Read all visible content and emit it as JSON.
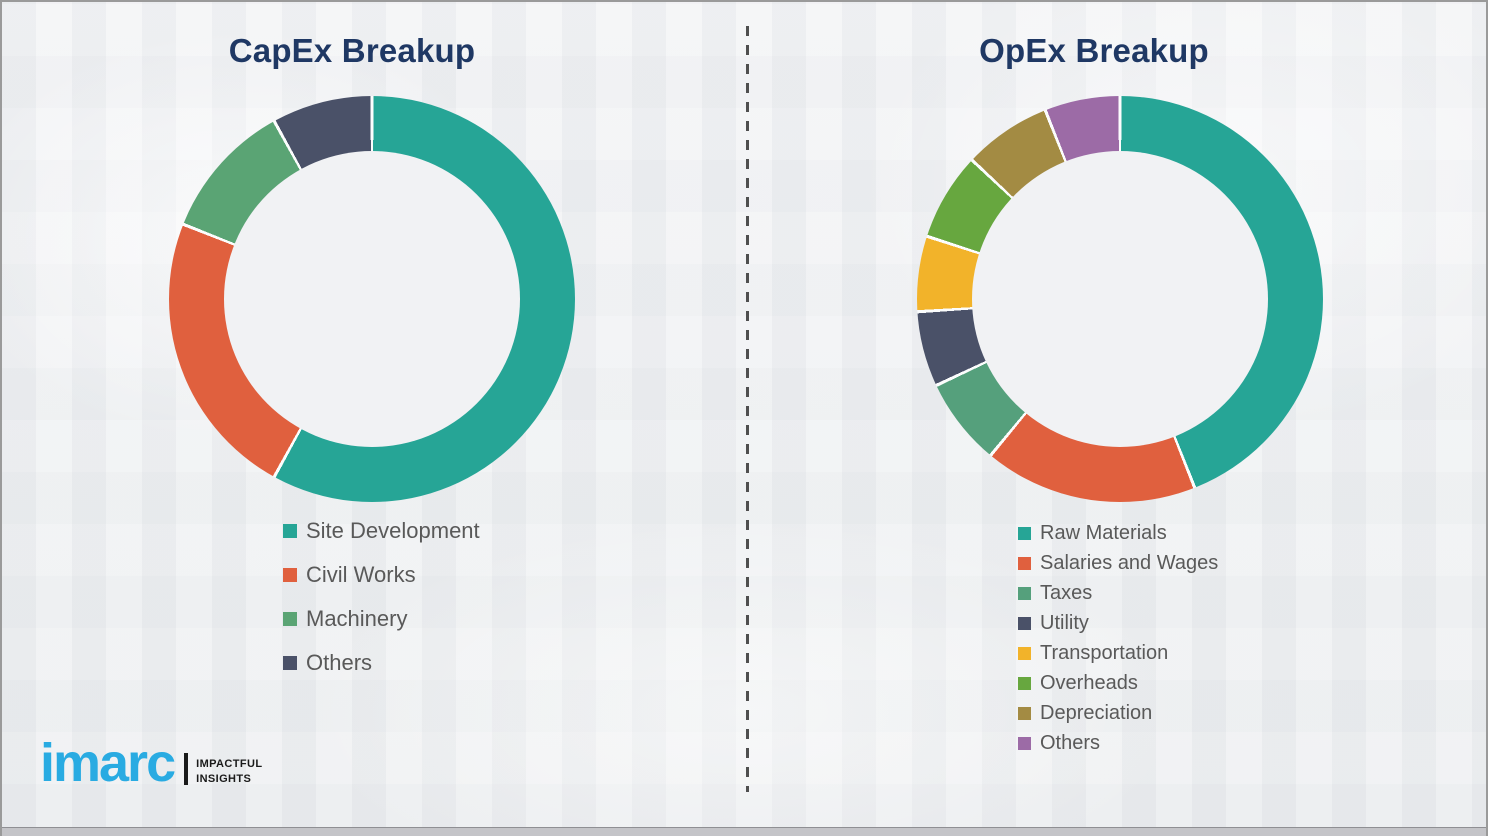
{
  "theme": {
    "title_color": "#1F3864",
    "legend_text_color": "#595959",
    "background_color": "#F0F1F3",
    "segment_gap_color": "#FCFDFD"
  },
  "chart_data": [
    {
      "type": "pie",
      "subtype": "donut",
      "title": "CapEx Breakup",
      "direction": "clockwise",
      "start_angle_deg": 0,
      "legend_position": "below-chart-left",
      "categories": [
        "Site Development",
        "Civil Works",
        "Machinery",
        "Others"
      ],
      "values": [
        58,
        23,
        11,
        8
      ],
      "values_unit": "percent (estimated from arc angles; no numeric labels shown)",
      "colors": [
        "#26A596",
        "#E0603E",
        "#5AA474",
        "#4A5168"
      ]
    },
    {
      "type": "pie",
      "subtype": "donut",
      "title": "OpEx Breakup",
      "direction": "clockwise",
      "start_angle_deg": 0,
      "legend_position": "below-chart-left",
      "categories": [
        "Raw Materials",
        "Salaries and Wages",
        "Taxes",
        "Utility",
        "Transportation",
        "Overheads",
        "Depreciation",
        "Others"
      ],
      "values": [
        44,
        17,
        7,
        6,
        6,
        7,
        7,
        6
      ],
      "values_unit": "percent (estimated from arc angles; no numeric labels shown)",
      "colors": [
        "#26A596",
        "#E0603E",
        "#55A07C",
        "#4A5168",
        "#F2B32A",
        "#67A73F",
        "#A38B43",
        "#9C6BA6"
      ]
    }
  ],
  "logo": {
    "brand": "imarc",
    "brand_color": "#29ABE2",
    "tagline_line1": "IMPACTFUL",
    "tagline_line2": "INSIGHTS"
  }
}
